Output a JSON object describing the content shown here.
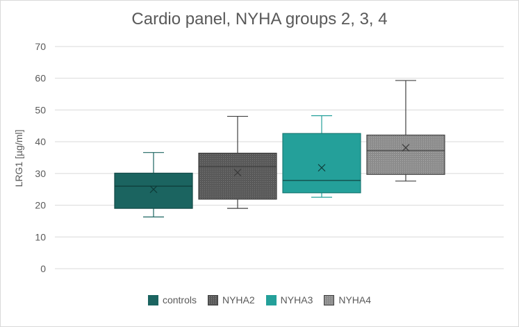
{
  "chart_data": {
    "type": "box",
    "title": "Cardio panel, NYHA groups 2, 3, 4",
    "ylabel": "LRG1 [µg/ml]",
    "xlabel": "",
    "ylim": [
      0,
      70
    ],
    "yticks": [
      0,
      10,
      20,
      30,
      40,
      50,
      60,
      70
    ],
    "grid": true,
    "legend_position": "bottom",
    "series": [
      {
        "name": "controls",
        "color": "#1b6460",
        "pattern": "solid",
        "min": 16.3,
        "q1": 19.0,
        "median": 26.0,
        "q3": 30.1,
        "max": 36.6,
        "mean": 25.0
      },
      {
        "name": "NYHA2",
        "color": "#595959",
        "pattern": "dots",
        "min": 19.0,
        "q1": 21.9,
        "median": 32.2,
        "q3": 36.4,
        "max": 48.0,
        "mean": 30.3
      },
      {
        "name": "NYHA3",
        "color": "#24a09a",
        "pattern": "solid",
        "min": 22.5,
        "q1": 23.9,
        "median": 27.8,
        "q3": 42.6,
        "max": 48.2,
        "mean": 31.8
      },
      {
        "name": "NYHA4",
        "color": "#8c8c8c",
        "pattern": "dots",
        "min": 27.6,
        "q1": 29.7,
        "median": 37.2,
        "q3": 42.1,
        "max": 59.3,
        "mean": 38.1
      }
    ]
  }
}
